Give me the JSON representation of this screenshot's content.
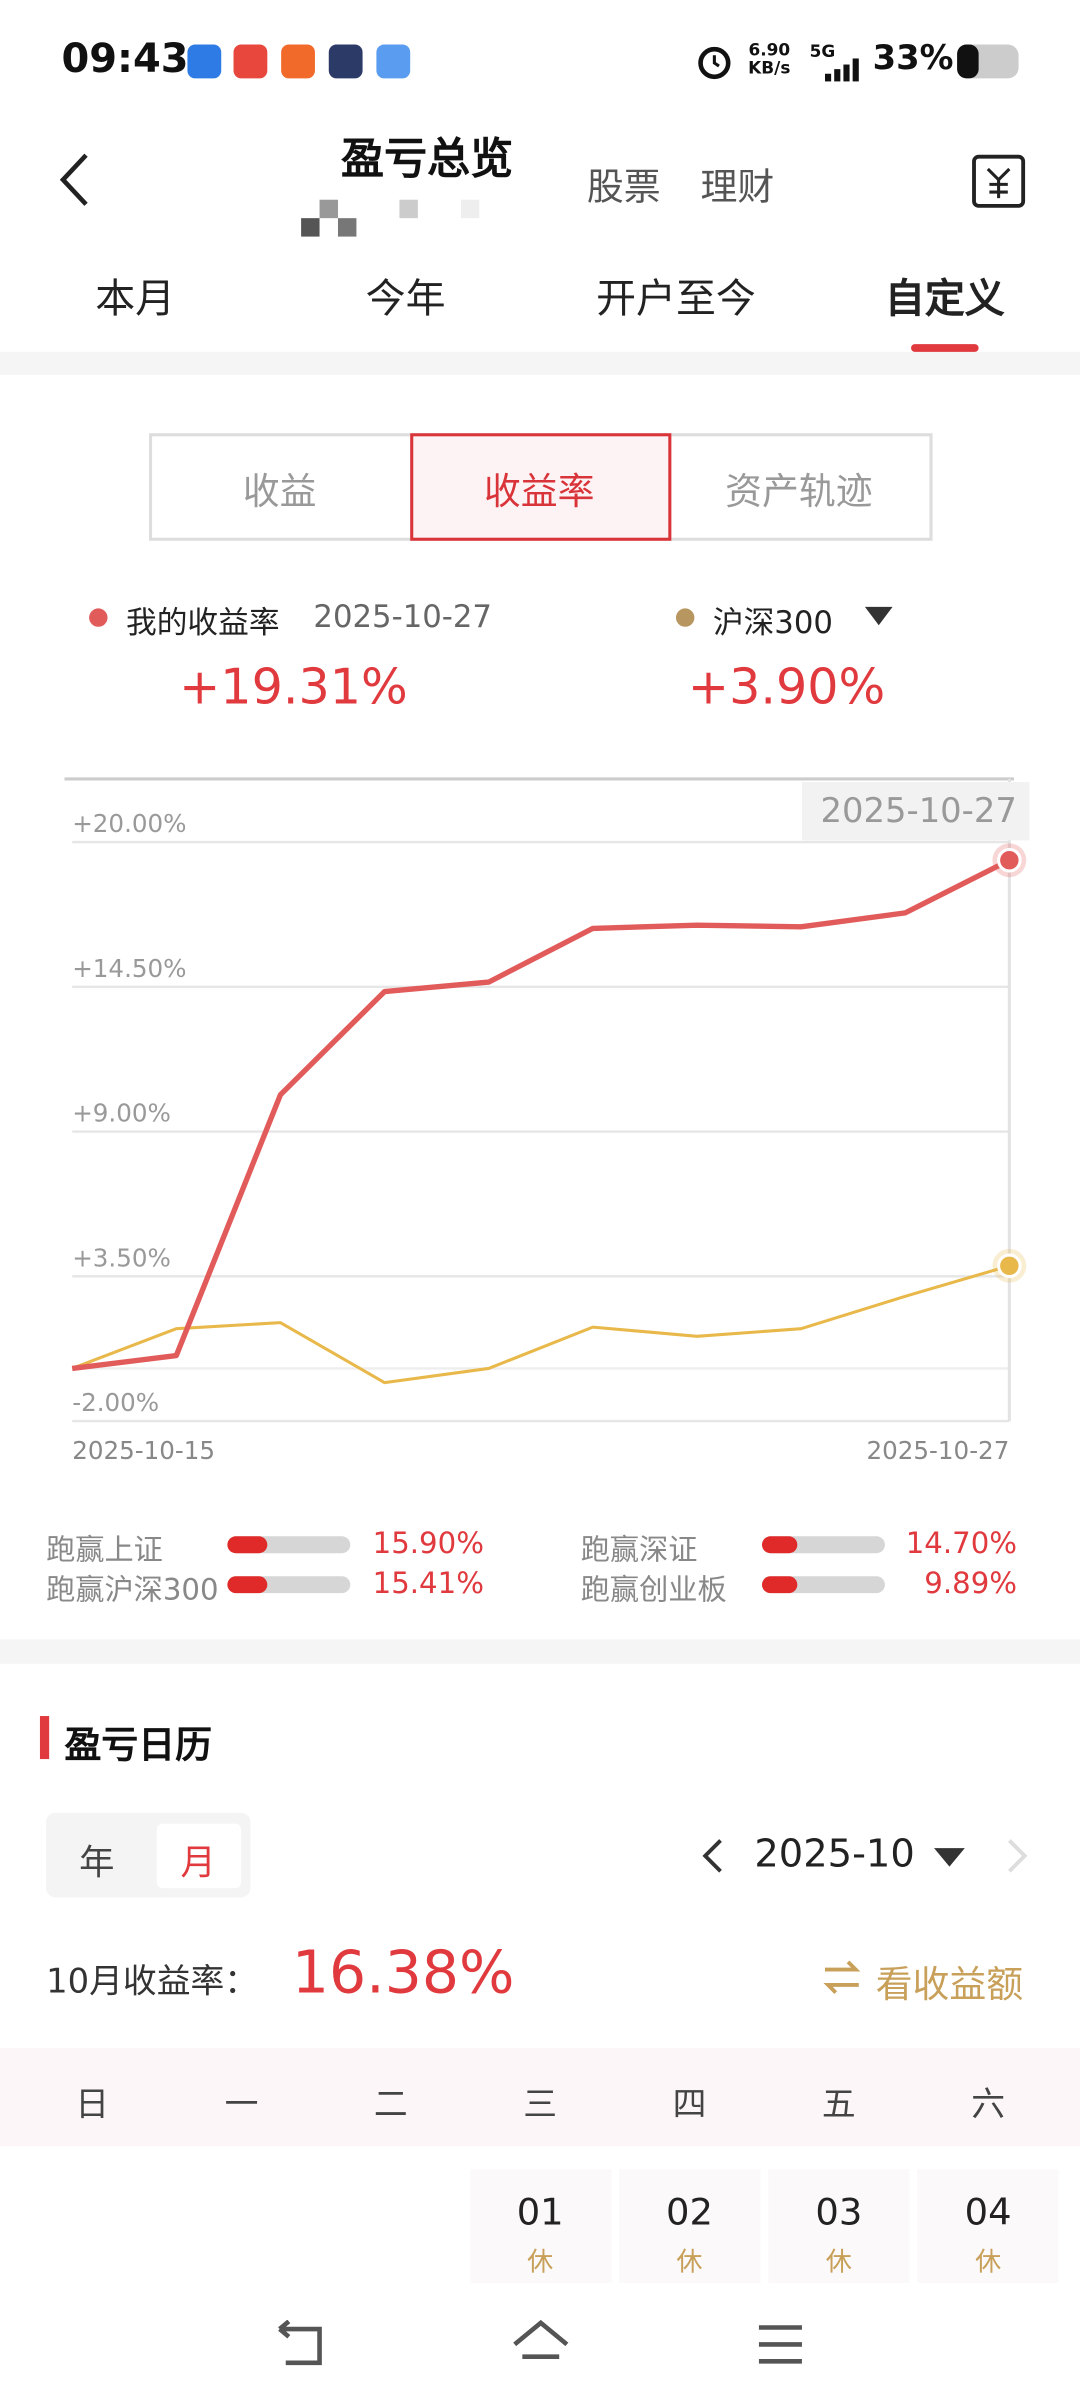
{
  "status_bar": {
    "time": "09:43",
    "network_speed": "6.90",
    "network_unit": "KB/s",
    "network_type": "5G",
    "battery": "33%"
  },
  "header": {
    "title": "盈亏总览",
    "links": [
      "股票",
      "理财"
    ]
  },
  "tabs": {
    "items": [
      "本月",
      "今年",
      "开户至今",
      "自定义"
    ],
    "selected": 3
  },
  "segments": {
    "items": [
      "收益",
      "收益率",
      "资产轨迹"
    ],
    "selected": 1
  },
  "chart_data": {
    "type": "line",
    "legend_date": "2025-10-27",
    "tooltip_date": "2025-10-27",
    "categories": [
      "2025-10-15",
      null,
      null,
      null,
      null,
      null,
      null,
      null,
      null,
      "2025-10-27"
    ],
    "series": [
      {
        "name": "我的收益率",
        "color": "#e25b5b",
        "latest_label": "+19.31%",
        "values": [
          0,
          0.49,
          10.4,
          14.32,
          14.68,
          16.72,
          16.84,
          16.78,
          17.31,
          19.31
        ]
      },
      {
        "name": "沪深300",
        "color": "#e8b84a",
        "dot_color": "#b89660",
        "latest_label": "+3.90%",
        "values": [
          0,
          1.51,
          1.74,
          -0.54,
          0,
          1.57,
          1.22,
          1.51,
          2.74,
          3.9
        ]
      }
    ],
    "ylim": [
      -2,
      22.4
    ],
    "yticks": [
      {
        "value": -2,
        "label": "-2.00%"
      },
      {
        "value": 3.5,
        "label": "+3.50%"
      },
      {
        "value": 9,
        "label": "+9.00%"
      },
      {
        "value": 14.5,
        "label": "+14.50%"
      },
      {
        "value": 20,
        "label": "+20.00%"
      }
    ],
    "grid": true
  },
  "comparison": [
    {
      "label": "跑赢上证",
      "value": "15.90%"
    },
    {
      "label": "跑赢深证",
      "value": "14.70%"
    },
    {
      "label": "跑赢沪深300",
      "value": "15.41%"
    },
    {
      "label": "跑赢创业板",
      "value": "9.89%"
    }
  ],
  "calendar": {
    "title": "盈亏日历",
    "modes": [
      "年",
      "月"
    ],
    "selected_mode": 1,
    "month": "2025-10",
    "return_label": "10月收益率：",
    "return_value": "16.38%",
    "switch_label": "看收益额",
    "weekdays": [
      "日",
      "一",
      "二",
      "三",
      "四",
      "五",
      "六"
    ],
    "days": [
      {
        "day": "01",
        "status": "休"
      },
      {
        "day": "02",
        "status": "休"
      },
      {
        "day": "03",
        "status": "休"
      },
      {
        "day": "04",
        "status": "休"
      }
    ]
  }
}
